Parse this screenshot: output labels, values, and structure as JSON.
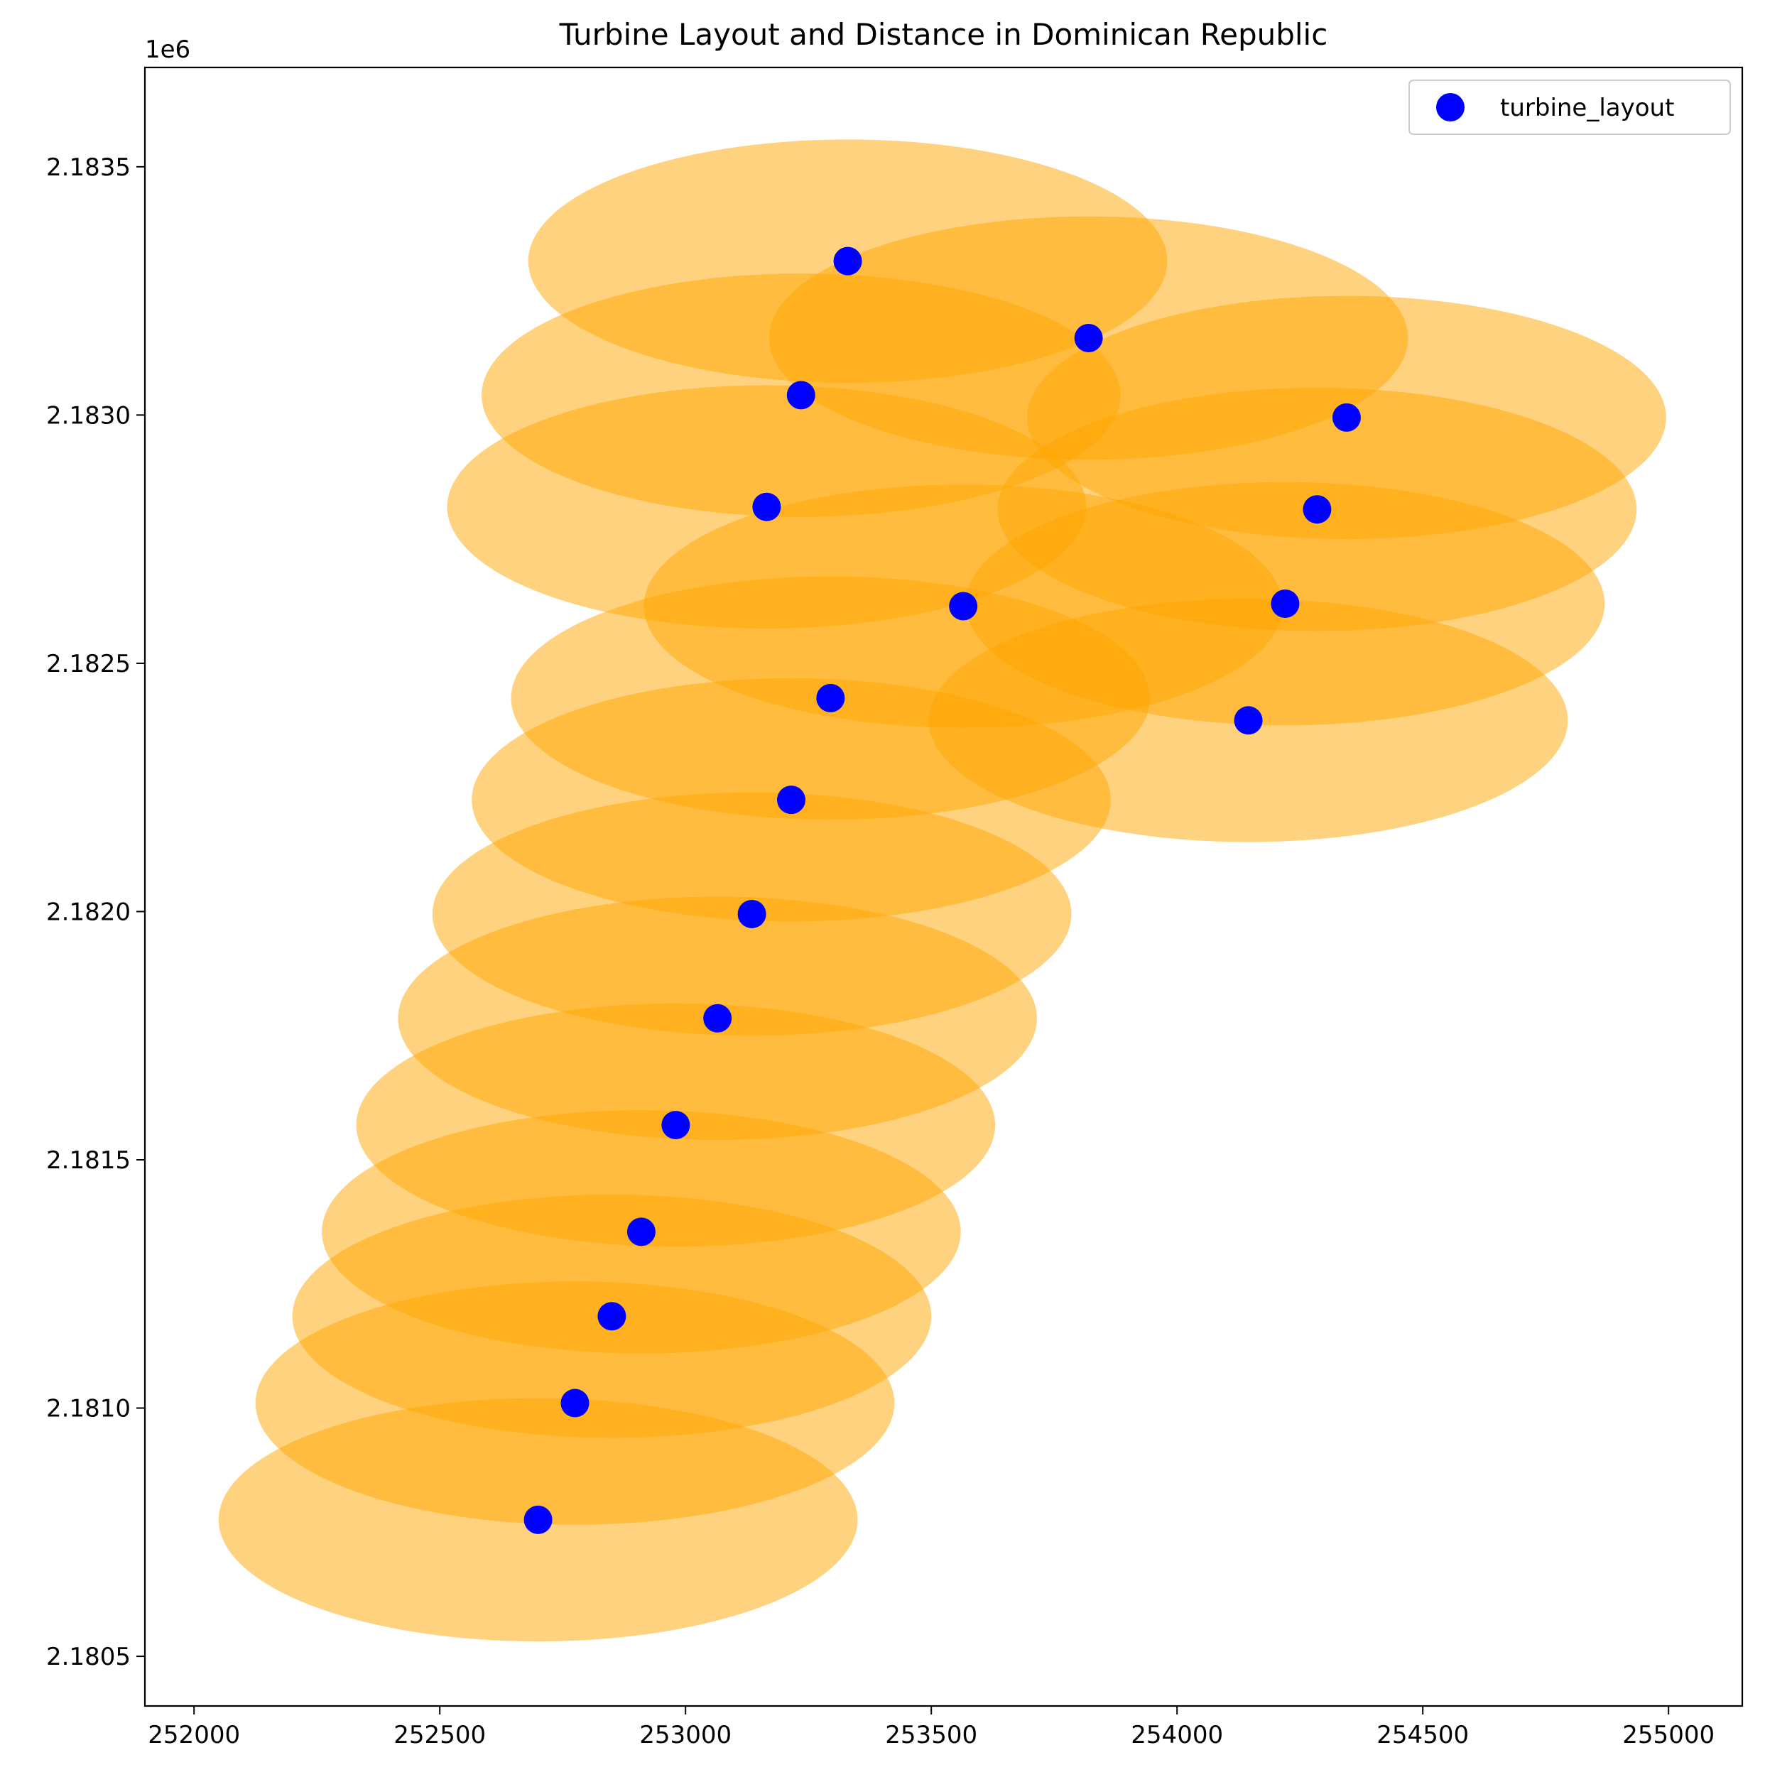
{
  "chart_data": {
    "type": "scatter",
    "title": "Turbine Layout and Distance in Dominican Republic",
    "xlabel": "",
    "ylabel": "",
    "y_offset_label": "1e6",
    "xlim": [
      251900,
      255150
    ],
    "ylim": [
      2180400,
      2183700
    ],
    "x_ticks": [
      252000,
      252500,
      253000,
      253500,
      254000,
      254500,
      255000
    ],
    "y_ticks": [
      2180500,
      2181000,
      2181500,
      2182000,
      2182500,
      2183000,
      2183500
    ],
    "x_tick_labels": [
      "252000",
      "252500",
      "253000",
      "253500",
      "254000",
      "254500",
      "255000"
    ],
    "y_tick_labels": [
      "2.1805",
      "2.1810",
      "2.1815",
      "2.1820",
      "2.1825",
      "2.1830",
      "2.1835"
    ],
    "grid": false,
    "legend": {
      "position": "top-right",
      "entries": [
        "turbine_layout"
      ]
    },
    "series": [
      {
        "name": "turbine_layout",
        "color": "#0000ff",
        "x": [
          253330,
          253820,
          253235,
          254345,
          253165,
          254285,
          253565,
          254220,
          253295,
          254145,
          253215,
          253135,
          253065,
          252980,
          252910,
          252850,
          252775,
          252700
        ],
        "y": [
          2183310,
          2183155,
          2183040,
          2182995,
          2182815,
          2182810,
          2182615,
          2182620,
          2182430,
          2182385,
          2182225,
          2181995,
          2181785,
          2181570,
          2181355,
          2181185,
          2181010,
          2180775
        ]
      }
    ],
    "distance_areas": {
      "color": "#ffa500",
      "opacity": 0.5,
      "x_radius": 650,
      "y_radius": 245
    }
  }
}
